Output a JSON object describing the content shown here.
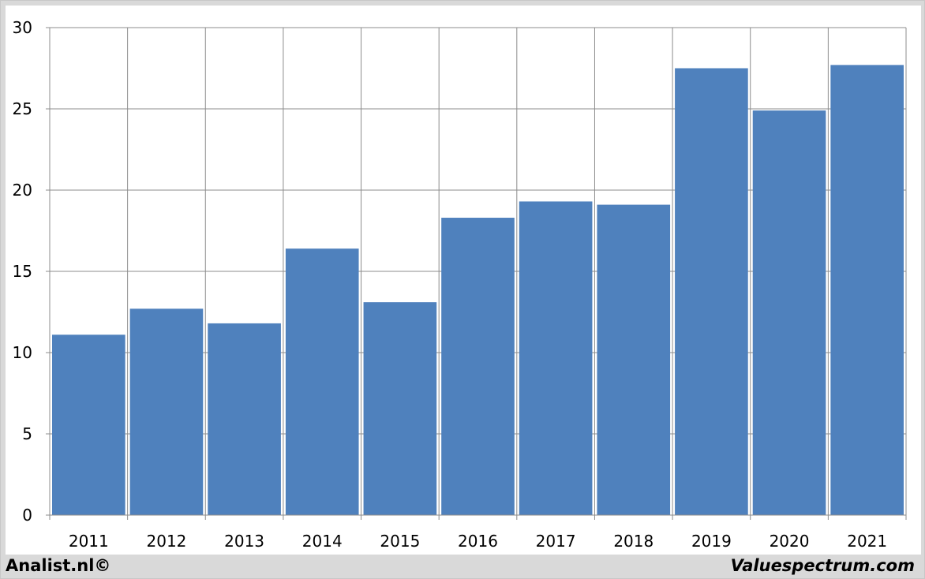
{
  "chart_data": {
    "type": "bar",
    "categories": [
      "2011",
      "2012",
      "2013",
      "2014",
      "2015",
      "2016",
      "2017",
      "2018",
      "2019",
      "2020",
      "2021"
    ],
    "values": [
      11.1,
      12.7,
      11.8,
      16.4,
      13.1,
      18.3,
      19.3,
      19.1,
      27.5,
      24.9,
      27.7
    ],
    "title": "",
    "xlabel": "",
    "ylabel": "",
    "ylim": [
      0,
      30
    ],
    "yticks": [
      "0",
      "5",
      "10",
      "15",
      "20",
      "25",
      "30"
    ],
    "grid": true,
    "bar_color": "#4f81bd",
    "grid_color": "#8c8c8c"
  },
  "footer": {
    "left": "Analist.nl©",
    "right": "Valuespectrum.com"
  }
}
